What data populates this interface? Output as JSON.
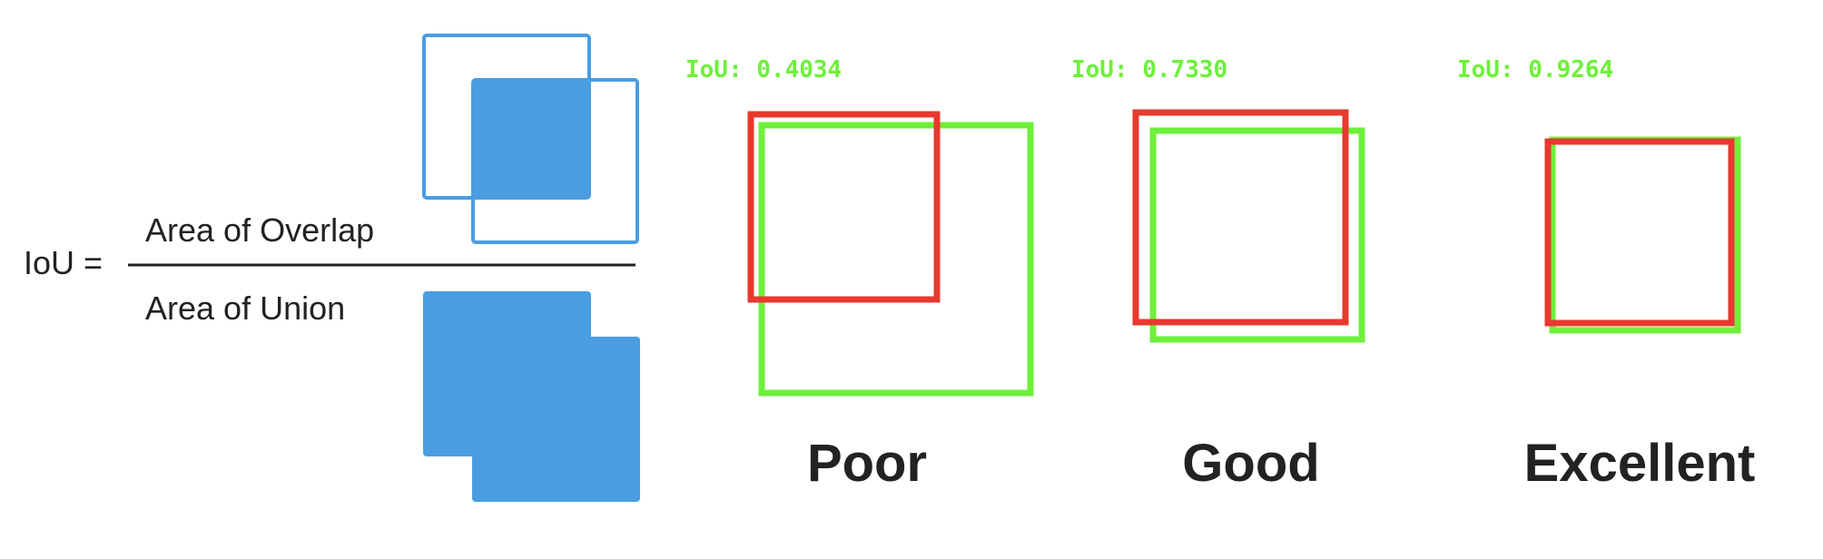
{
  "formula": {
    "lhs": "IoU =",
    "numerator": "Area of Overlap",
    "denominator": "Area of Union"
  },
  "colors": {
    "blue": "#4a9de0",
    "ground_truth_green": "#6ef03a",
    "prediction_red": "#e8392e",
    "label_green": "#6ef03a",
    "text_dark": "#222222"
  },
  "examples": [
    {
      "iou_label": "IoU: 0.4034",
      "iou_value": 0.4034,
      "quality": "Poor"
    },
    {
      "iou_label": "IoU: 0.7330",
      "iou_value": 0.733,
      "quality": "Good"
    },
    {
      "iou_label": "IoU: 0.9264",
      "iou_value": 0.9264,
      "quality": "Excellent"
    }
  ]
}
